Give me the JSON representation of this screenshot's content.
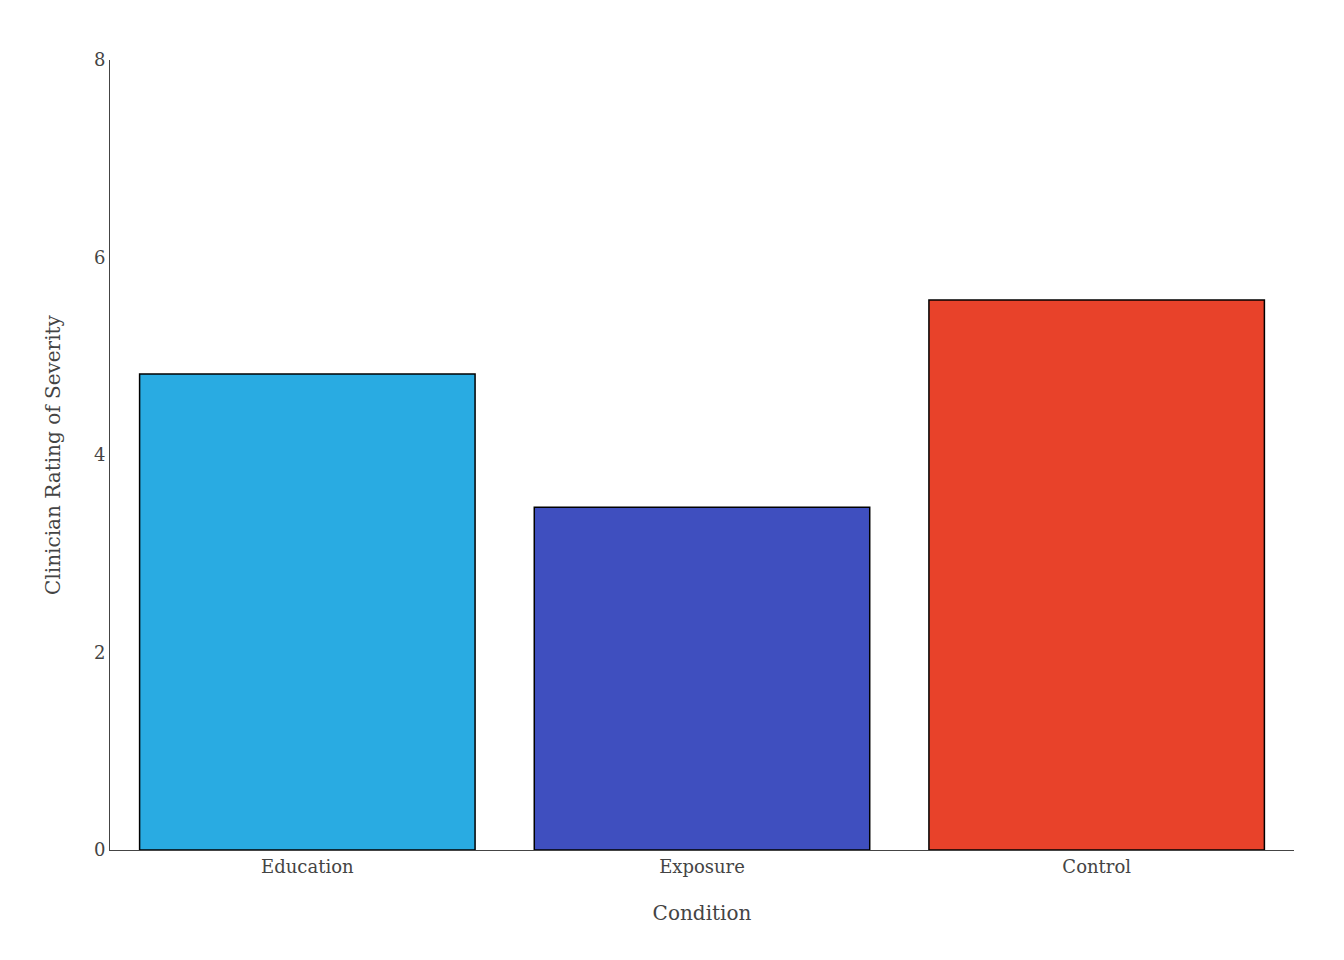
{
  "chart_data": {
    "type": "bar",
    "xlabel": "Condition",
    "ylabel": "Clinician Rating of Severity",
    "categories": [
      "Education",
      "Exposure",
      "Control"
    ],
    "values": [
      4.82,
      3.47,
      5.57
    ],
    "colors": [
      "#29ABE2",
      "#3F4FBF",
      "#E8422A"
    ],
    "ylim": [
      0,
      8
    ],
    "yticks": [
      0,
      2,
      4,
      6,
      8
    ],
    "grid": false
  }
}
